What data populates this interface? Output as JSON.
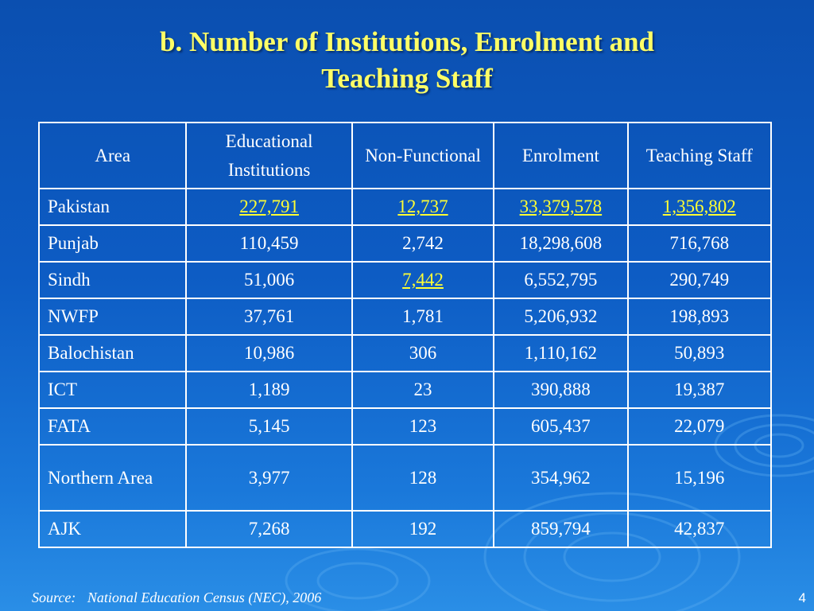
{
  "title": {
    "line1": "b. Number of Institutions, Enrolment and",
    "line2": "Teaching Staff"
  },
  "table": {
    "headers": [
      "Area",
      "Educational Institutions",
      "Non-Functional",
      "Enrolment",
      "Teaching Staff"
    ],
    "rows": [
      {
        "area": "Pakistan",
        "institutions": "227,791",
        "non_functional": "12,737",
        "enrolment": "33,379,578",
        "teaching_staff": "1,356,802"
      },
      {
        "area": "Punjab",
        "institutions": "110,459",
        "non_functional": "2,742",
        "enrolment": "18,298,608",
        "teaching_staff": "716,768"
      },
      {
        "area": "Sindh",
        "institutions": "51,006",
        "non_functional": "7,442",
        "enrolment": "6,552,795",
        "teaching_staff": "290,749"
      },
      {
        "area": "NWFP",
        "institutions": "37,761",
        "non_functional": "1,781",
        "enrolment": "5,206,932",
        "teaching_staff": "198,893"
      },
      {
        "area": "Balochistan",
        "institutions": "10,986",
        "non_functional": "306",
        "enrolment": "1,110,162",
        "teaching_staff": "50,893"
      },
      {
        "area": "ICT",
        "institutions": "1,189",
        "non_functional": "23",
        "enrolment": "390,888",
        "teaching_staff": "19,387"
      },
      {
        "area": "FATA",
        "institutions": "5,145",
        "non_functional": "123",
        "enrolment": "605,437",
        "teaching_staff": "22,079"
      },
      {
        "area": "Northern Area",
        "institutions": "3,977",
        "non_functional": "128",
        "enrolment": "354,962",
        "teaching_staff": "15,196"
      },
      {
        "area": "AJK",
        "institutions": "7,268",
        "non_functional": "192",
        "enrolment": "859,794",
        "teaching_staff": "42,837"
      }
    ]
  },
  "footer": {
    "source_label": "Source:",
    "source_text": "National Education Census (NEC), 2006",
    "page_number": "4"
  },
  "colors": {
    "background": "#0d5cc4",
    "title": "#ffff66",
    "highlight": "#ffff33",
    "text": "#ffffff"
  }
}
